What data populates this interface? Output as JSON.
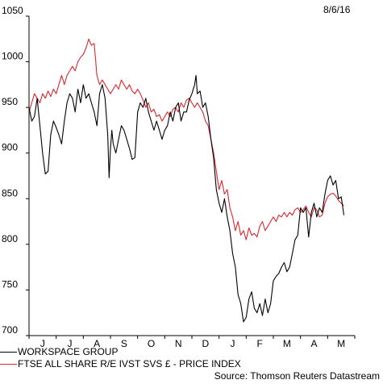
{
  "date_label": "8/6/16",
  "source": "Source: Thomson Reuters Datastream",
  "colors": {
    "series_1": "#000000",
    "series_2": "#e0242c"
  },
  "chart_data": {
    "type": "line",
    "title": "",
    "xlabel": "",
    "ylabel": "",
    "ylim": [
      700,
      1050
    ],
    "yticks": [
      700,
      750,
      800,
      850,
      900,
      950,
      1000,
      1050
    ],
    "y_tick_labels": [
      "700",
      "750",
      "800",
      "850",
      "900",
      "950",
      "1000",
      "1050"
    ],
    "x_tick_labels": [
      "J",
      "J",
      "A",
      "S",
      "O",
      "N",
      "D",
      "J",
      "F",
      "M",
      "A",
      "M"
    ],
    "x_range_months": [
      "Jun 2015",
      "Jun 2016"
    ],
    "grid": false,
    "legend_position": "bottom-left",
    "series": [
      {
        "name": "WORKSPACE GROUP",
        "color": "#000000",
        "points": [
          [
            0.0,
            950
          ],
          [
            0.1,
            935
          ],
          [
            0.2,
            940
          ],
          [
            0.3,
            960
          ],
          [
            0.4,
            930
          ],
          [
            0.5,
            900
          ],
          [
            0.6,
            877
          ],
          [
            0.7,
            880
          ],
          [
            0.8,
            920
          ],
          [
            0.9,
            935
          ],
          [
            1.0,
            928
          ],
          [
            1.1,
            920
          ],
          [
            1.2,
            910
          ],
          [
            1.3,
            935
          ],
          [
            1.4,
            955
          ],
          [
            1.5,
            965
          ],
          [
            1.6,
            960
          ],
          [
            1.7,
            945
          ],
          [
            1.8,
            970
          ],
          [
            1.9,
            955
          ],
          [
            2.0,
            975
          ],
          [
            2.1,
            960
          ],
          [
            2.2,
            965
          ],
          [
            2.3,
            955
          ],
          [
            2.4,
            945
          ],
          [
            2.5,
            930
          ],
          [
            2.6,
            965
          ],
          [
            2.7,
            975
          ],
          [
            2.8,
            960
          ],
          [
            2.9,
            920
          ],
          [
            2.95,
            873
          ],
          [
            3.0,
            905
          ],
          [
            3.05,
            925
          ],
          [
            3.1,
            910
          ],
          [
            3.2,
            900
          ],
          [
            3.3,
            915
          ],
          [
            3.4,
            930
          ],
          [
            3.5,
            925
          ],
          [
            3.6,
            915
          ],
          [
            3.7,
            905
          ],
          [
            3.8,
            893
          ],
          [
            3.9,
            895
          ],
          [
            4.0,
            945
          ],
          [
            4.1,
            955
          ],
          [
            4.2,
            950
          ],
          [
            4.3,
            960
          ],
          [
            4.4,
            945
          ],
          [
            4.5,
            935
          ],
          [
            4.6,
            925
          ],
          [
            4.7,
            935
          ],
          [
            4.8,
            925
          ],
          [
            4.9,
            915
          ],
          [
            5.0,
            925
          ],
          [
            5.1,
            930
          ],
          [
            5.2,
            945
          ],
          [
            5.3,
            935
          ],
          [
            5.4,
            950
          ],
          [
            5.5,
            955
          ],
          [
            5.6,
            935
          ],
          [
            5.7,
            945
          ],
          [
            5.8,
            945
          ],
          [
            5.9,
            958
          ],
          [
            6.0,
            965
          ],
          [
            6.1,
            975
          ],
          [
            6.15,
            985
          ],
          [
            6.2,
            965
          ],
          [
            6.3,
            968
          ],
          [
            6.4,
            950
          ],
          [
            6.5,
            955
          ],
          [
            6.6,
            940
          ],
          [
            6.7,
            915
          ],
          [
            6.8,
            895
          ],
          [
            6.9,
            860
          ],
          [
            7.0,
            845
          ],
          [
            7.1,
            835
          ],
          [
            7.2,
            850
          ],
          [
            7.3,
            830
          ],
          [
            7.4,
            815
          ],
          [
            7.5,
            790
          ],
          [
            7.6,
            775
          ],
          [
            7.7,
            745
          ],
          [
            7.8,
            735
          ],
          [
            7.9,
            715
          ],
          [
            8.0,
            720
          ],
          [
            8.1,
            740
          ],
          [
            8.2,
            748
          ],
          [
            8.3,
            730
          ],
          [
            8.4,
            725
          ],
          [
            8.5,
            735
          ],
          [
            8.6,
            722
          ],
          [
            8.7,
            740
          ],
          [
            8.8,
            725
          ],
          [
            8.9,
            735
          ],
          [
            9.0,
            760
          ],
          [
            9.1,
            765
          ],
          [
            9.2,
            768
          ],
          [
            9.3,
            775
          ],
          [
            9.4,
            780
          ],
          [
            9.5,
            770
          ],
          [
            9.6,
            775
          ],
          [
            9.7,
            790
          ],
          [
            9.8,
            805
          ],
          [
            9.9,
            810
          ],
          [
            10.0,
            840
          ],
          [
            10.1,
            835
          ],
          [
            10.2,
            840
          ],
          [
            10.3,
            808
          ],
          [
            10.4,
            835
          ],
          [
            10.5,
            845
          ],
          [
            10.6,
            830
          ],
          [
            10.7,
            840
          ],
          [
            10.8,
            835
          ],
          [
            10.9,
            855
          ],
          [
            11.0,
            870
          ],
          [
            11.1,
            875
          ],
          [
            11.2,
            865
          ],
          [
            11.3,
            870
          ],
          [
            11.4,
            850
          ],
          [
            11.5,
            852
          ],
          [
            11.6,
            832
          ]
        ]
      },
      {
        "name": "FTSE ALL SHARE R/E IVST SVS £ - PRICE INDEX",
        "color": "#e0242c",
        "points": [
          [
            0.0,
            945
          ],
          [
            0.1,
            955
          ],
          [
            0.2,
            965
          ],
          [
            0.3,
            960
          ],
          [
            0.4,
            955
          ],
          [
            0.5,
            965
          ],
          [
            0.6,
            960
          ],
          [
            0.7,
            968
          ],
          [
            0.8,
            962
          ],
          [
            0.9,
            970
          ],
          [
            1.0,
            965
          ],
          [
            1.1,
            975
          ],
          [
            1.2,
            985
          ],
          [
            1.3,
            975
          ],
          [
            1.4,
            985
          ],
          [
            1.5,
            990
          ],
          [
            1.6,
            995
          ],
          [
            1.7,
            990
          ],
          [
            1.8,
            1000
          ],
          [
            1.9,
            1005
          ],
          [
            2.0,
            1008
          ],
          [
            2.1,
            1015
          ],
          [
            2.2,
            1025
          ],
          [
            2.3,
            1018
          ],
          [
            2.4,
            1020
          ],
          [
            2.5,
            985
          ],
          [
            2.6,
            975
          ],
          [
            2.7,
            980
          ],
          [
            2.8,
            975
          ],
          [
            2.9,
            970
          ],
          [
            3.0,
            965
          ],
          [
            3.1,
            970
          ],
          [
            3.2,
            975
          ],
          [
            3.3,
            970
          ],
          [
            3.4,
            980
          ],
          [
            3.5,
            975
          ],
          [
            3.6,
            970
          ],
          [
            3.7,
            975
          ],
          [
            3.8,
            968
          ],
          [
            3.9,
            965
          ],
          [
            4.0,
            970
          ],
          [
            4.1,
            965
          ],
          [
            4.2,
            958
          ],
          [
            4.3,
            950
          ],
          [
            4.4,
            955
          ],
          [
            4.5,
            945
          ],
          [
            4.6,
            948
          ],
          [
            4.7,
            940
          ],
          [
            4.8,
            942
          ],
          [
            4.9,
            935
          ],
          [
            5.0,
            940
          ],
          [
            5.1,
            945
          ],
          [
            5.2,
            940
          ],
          [
            5.3,
            948
          ],
          [
            5.4,
            950
          ],
          [
            5.5,
            945
          ],
          [
            5.6,
            955
          ],
          [
            5.7,
            950
          ],
          [
            5.8,
            958
          ],
          [
            5.9,
            960
          ],
          [
            6.0,
            955
          ],
          [
            6.1,
            950
          ],
          [
            6.2,
            955
          ],
          [
            6.3,
            950
          ],
          [
            6.4,
            945
          ],
          [
            6.5,
            935
          ],
          [
            6.6,
            930
          ],
          [
            6.7,
            915
          ],
          [
            6.8,
            900
          ],
          [
            6.9,
            880
          ],
          [
            7.0,
            860
          ],
          [
            7.1,
            870
          ],
          [
            7.2,
            855
          ],
          [
            7.3,
            860
          ],
          [
            7.4,
            840
          ],
          [
            7.5,
            830
          ],
          [
            7.6,
            815
          ],
          [
            7.7,
            825
          ],
          [
            7.8,
            810
          ],
          [
            7.9,
            815
          ],
          [
            8.0,
            805
          ],
          [
            8.1,
            818
          ],
          [
            8.2,
            810
          ],
          [
            8.3,
            812
          ],
          [
            8.4,
            808
          ],
          [
            8.5,
            820
          ],
          [
            8.6,
            825
          ],
          [
            8.7,
            815
          ],
          [
            8.8,
            820
          ],
          [
            8.9,
            825
          ],
          [
            9.0,
            830
          ],
          [
            9.1,
            825
          ],
          [
            9.2,
            832
          ],
          [
            9.3,
            830
          ],
          [
            9.4,
            835
          ],
          [
            9.5,
            830
          ],
          [
            9.6,
            835
          ],
          [
            9.7,
            832
          ],
          [
            9.8,
            838
          ],
          [
            9.9,
            840
          ],
          [
            10.0,
            835
          ],
          [
            10.1,
            838
          ],
          [
            10.2,
            842
          ],
          [
            10.3,
            835
          ],
          [
            10.4,
            830
          ],
          [
            10.5,
            840
          ],
          [
            10.6,
            838
          ],
          [
            10.7,
            830
          ],
          [
            10.8,
            832
          ],
          [
            10.9,
            845
          ],
          [
            11.0,
            852
          ],
          [
            11.1,
            855
          ],
          [
            11.2,
            856
          ],
          [
            11.3,
            853
          ],
          [
            11.4,
            848
          ],
          [
            11.5,
            845
          ],
          [
            11.6,
            842
          ]
        ]
      }
    ]
  }
}
